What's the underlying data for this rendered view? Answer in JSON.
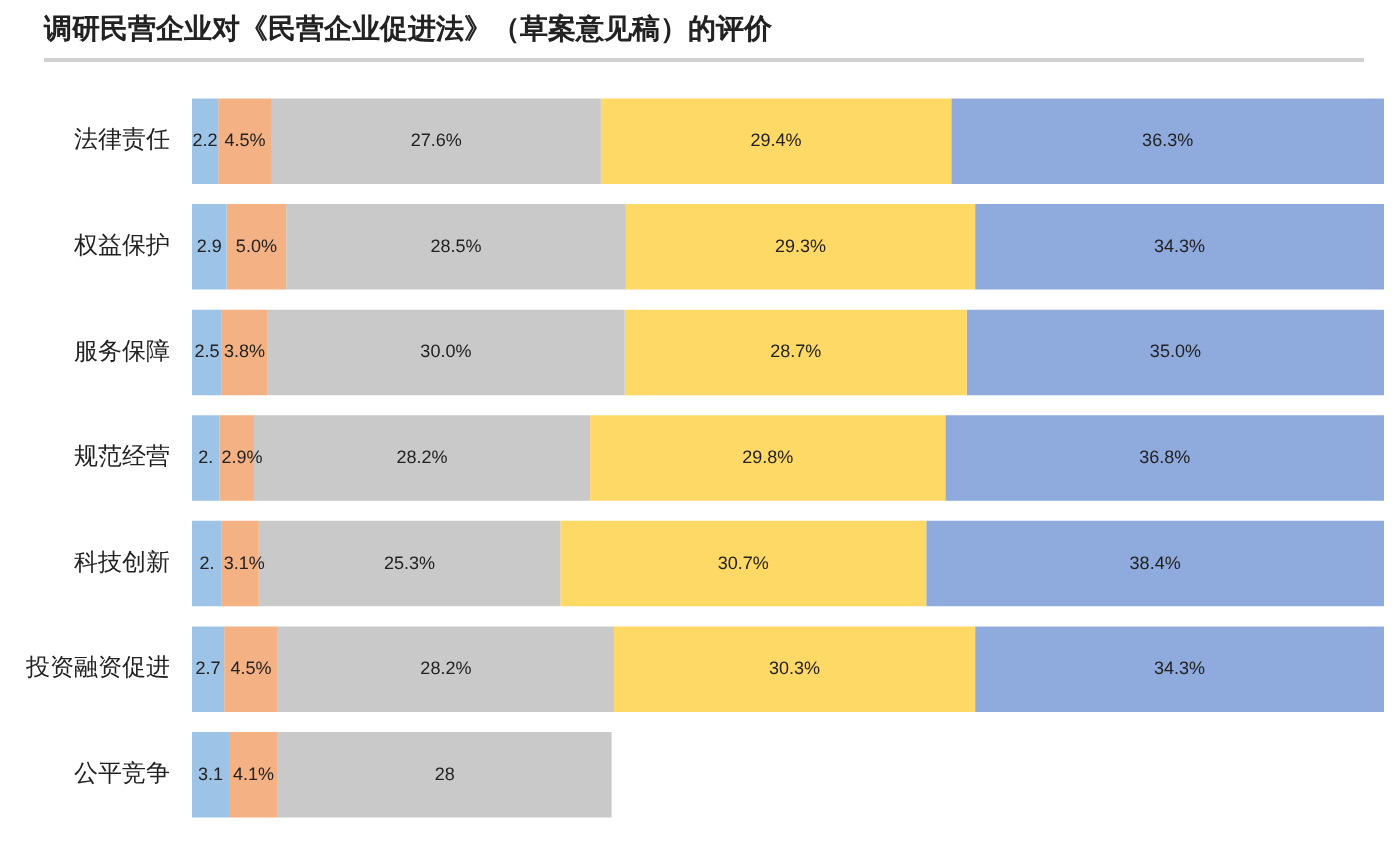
{
  "chart_data": {
    "type": "bar",
    "orientation": "horizontal",
    "stacked": true,
    "title": "调研民营企业对《民营企业促进法》（草案意见稿）的评价",
    "categories": [
      "法律责任",
      "权益保护",
      "服务保障",
      "规范经营",
      "科技创新",
      "投资融资促进",
      "公平竞争"
    ],
    "series": [
      {
        "color": "#9dc3e6",
        "values": [
          2.2,
          2.9,
          2.5,
          2.3,
          2.5,
          2.7,
          3.1
        ],
        "value_labels": [
          "2.2",
          "2.9",
          "2.5",
          "2.",
          "2.",
          "2.7",
          "3.1"
        ]
      },
      {
        "color": "#f4b183",
        "values": [
          4.5,
          5.0,
          3.8,
          2.9,
          3.1,
          4.5,
          4.1
        ],
        "value_labels": [
          "4.5%",
          "5.0%",
          "3.8%",
          "2.9%",
          "3.1%",
          "4.5%",
          "4.1%"
        ]
      },
      {
        "color": "#c9c9c9",
        "values": [
          27.6,
          28.5,
          30.0,
          28.2,
          25.3,
          28.2,
          28
        ],
        "value_labels": [
          "27.6%",
          "28.5%",
          "30.0%",
          "28.2%",
          "25.3%",
          "28.2%",
          "28"
        ]
      },
      {
        "color": "#ffd966",
        "values": [
          29.4,
          29.3,
          28.7,
          29.8,
          30.7,
          30.3,
          null
        ],
        "value_labels": [
          "29.4%",
          "29.3%",
          "28.7%",
          "29.8%",
          "30.7%",
          "30.3%",
          null
        ]
      },
      {
        "color": "#8faadc",
        "values": [
          36.3,
          34.3,
          35.0,
          36.8,
          38.4,
          34.3,
          null
        ],
        "value_labels": [
          "36.3%",
          "34.3%",
          "35.0%",
          "36.8%",
          "38.4%",
          "34.3%",
          null
        ]
      }
    ],
    "tick_labels": "y",
    "legend": false
  }
}
